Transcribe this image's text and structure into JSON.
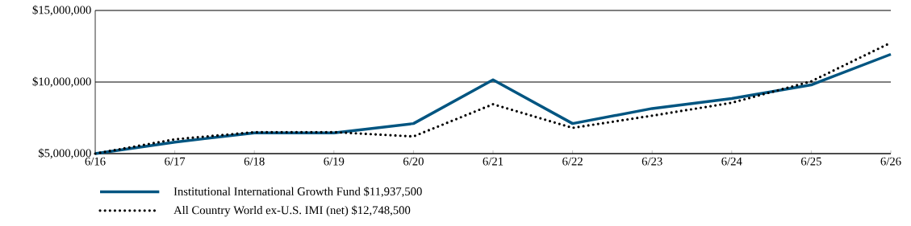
{
  "chart_data": {
    "type": "line",
    "categories": [
      "6/16",
      "6/17",
      "6/18",
      "6/19",
      "6/20",
      "6/21",
      "6/22",
      "6/23",
      "6/24",
      "6/25",
      "6/26"
    ],
    "series": [
      {
        "name": "Institutional International Growth Fund $11,937,500",
        "color": "#005581",
        "line_style": "solid",
        "values": [
          5000000,
          5800000,
          6450000,
          6450000,
          7100000,
          10150000,
          7100000,
          8150000,
          8850000,
          9800000,
          11937500
        ]
      },
      {
        "name": "All Country World ex-U.S. IMI (net) $12,748,500",
        "color": "#000000",
        "line_style": "dotted",
        "values": [
          5000000,
          6000000,
          6500000,
          6500000,
          6200000,
          8450000,
          6800000,
          7650000,
          8550000,
          10050000,
          12748500
        ]
      }
    ],
    "ylim": [
      5000000,
      15000000
    ],
    "yticks": [
      {
        "value": 5000000,
        "label": "$5,000,000"
      },
      {
        "value": 10000000,
        "label": "$10,000,000"
      },
      {
        "value": 15000000,
        "label": "$15,000,000"
      }
    ],
    "grid": "y",
    "legend": "bottom",
    "marker": "none"
  }
}
